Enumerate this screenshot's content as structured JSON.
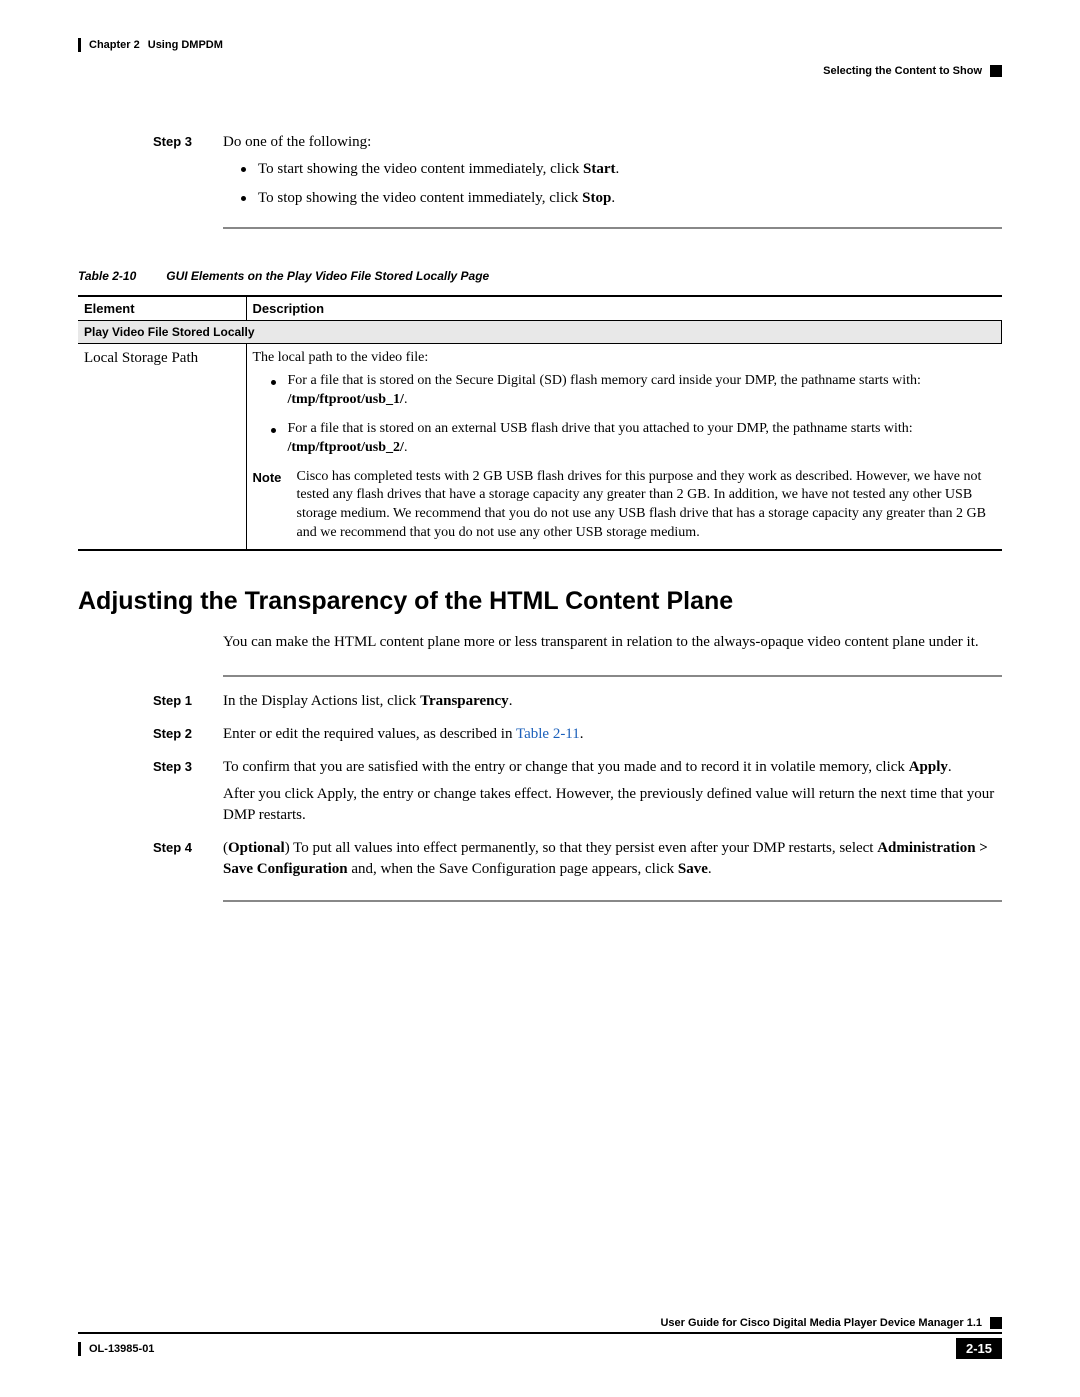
{
  "header": {
    "chapter": "Chapter 2",
    "chapterTitle": "Using DMPDM",
    "sectionRight": "Selecting the Content to Show"
  },
  "steps_top": {
    "s3": {
      "label": "Step 3",
      "lead": "Do one of the following:",
      "b1_pre": "To start showing the video content immediately, click ",
      "b1_bold": "Start",
      "b1_post": ".",
      "b2_pre": "To stop showing the video content immediately, click ",
      "b2_bold": "Stop",
      "b2_post": "."
    }
  },
  "table": {
    "num": "Table 2-10",
    "title": "GUI Elements on the Play Video File Stored Locally Page",
    "col1": "Element",
    "col2": "Description",
    "section": "Play Video File Stored Locally",
    "row_el": "Local Storage Path",
    "desc_lead": "The local path to the video file:",
    "d1_pre": "For a file that is stored on the Secure Digital (SD) flash memory card inside your DMP, the pathname starts with: ",
    "d1_bold": "/tmp/ftproot/usb_1/",
    "d1_post": ".",
    "d2_pre": "For a file that is stored on an external USB flash drive that you attached to your DMP, the pathname starts with: ",
    "d2_bold": "/tmp/ftproot/usb_2/",
    "d2_post": ".",
    "note_label": "Note",
    "note_body": "Cisco has completed tests with 2 GB USB flash drives for this purpose and they work as described. However, we have not tested any flash drives that have a storage capacity any greater than 2 GB. In addition, we have not tested any other USB storage medium. We recommend that you do not use any USB flash drive that has a storage capacity any greater than 2 GB and we recommend that you do not use any other USB storage medium."
  },
  "h2": "Adjusting the Transparency of the HTML Content Plane",
  "intro": "You can make the HTML content plane more or less transparent in relation to the always-opaque video content plane under it.",
  "steps_main": {
    "s1": {
      "label": "Step 1",
      "pre": "In the Display Actions list, click ",
      "bold": "Transparency",
      "post": "."
    },
    "s2": {
      "label": "Step 2",
      "pre": "Enter or edit the required values, as described in ",
      "link": "Table 2-11",
      "post": "."
    },
    "s3": {
      "label": "Step 3",
      "pre": "To confirm that you are satisfied with the entry or change that you made and to record it in volatile memory, click ",
      "bold": "Apply",
      "post": ".",
      "after": "After you click Apply, the entry or change takes effect. However, the previously defined value will return the next time that your DMP restarts."
    },
    "s4": {
      "label": "Step 4",
      "p1": "(",
      "opt": "Optional",
      "p2": ") To put all values into effect permanently, so that they persist even after your DMP restarts, select ",
      "b1": "Administration > Save Configuration",
      "p3": " and, when the Save Configuration page appears, click ",
      "b2": "Save",
      "p4": "."
    }
  },
  "footer": {
    "guide": "User Guide for Cisco Digital Media Player Device Manager 1.1",
    "doc": "OL-13985-01",
    "page": "2-15"
  }
}
